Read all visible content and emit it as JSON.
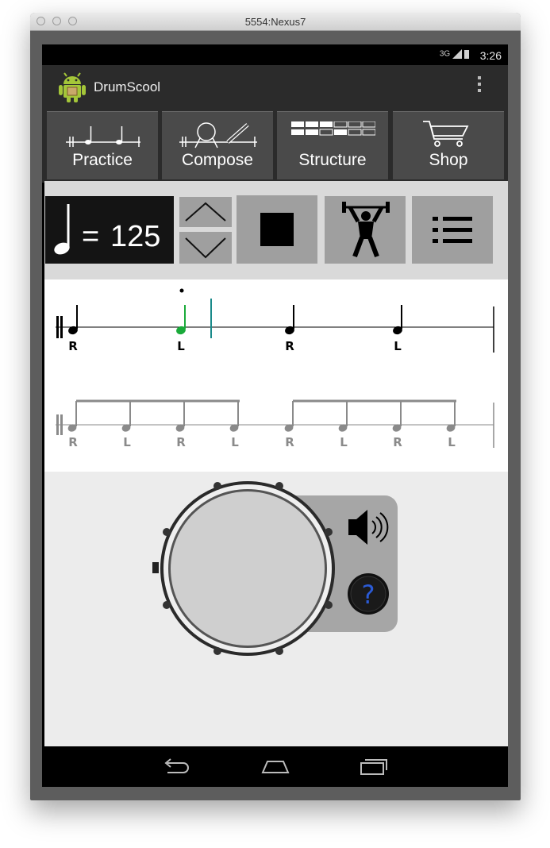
{
  "window": {
    "title": "5554:Nexus7"
  },
  "status": {
    "time": "3:26",
    "network": "3G"
  },
  "app": {
    "title": "DrumScool"
  },
  "tabs": [
    {
      "label": "Practice"
    },
    {
      "label": "Compose"
    },
    {
      "label": "Structure"
    },
    {
      "label": "Shop"
    }
  ],
  "tempo": {
    "equals": "=",
    "value": "125"
  },
  "notation": {
    "line1": {
      "sticking": [
        "R",
        "L",
        "R",
        "L"
      ],
      "active_note_color": "#1aaa3a"
    },
    "line2": {
      "sticking": [
        "R",
        "L",
        "R",
        "L",
        "R",
        "L",
        "R",
        "L"
      ]
    }
  },
  "colors": {
    "screen_bg": "#d9d9d9",
    "accent_green": "#1aaa3a",
    "cursor_teal": "#1a8a8a",
    "help_blue": "#2b5bd6"
  },
  "icons": {
    "app": "android-icon",
    "tempo_up": "chevron-up-icon",
    "tempo_down": "chevron-down-icon",
    "stop": "stop-icon",
    "workout": "weightlifter-icon",
    "list": "list-icon",
    "sound": "speaker-icon",
    "help": "help-icon",
    "back": "back-icon",
    "home": "home-icon",
    "recents": "recents-icon"
  }
}
